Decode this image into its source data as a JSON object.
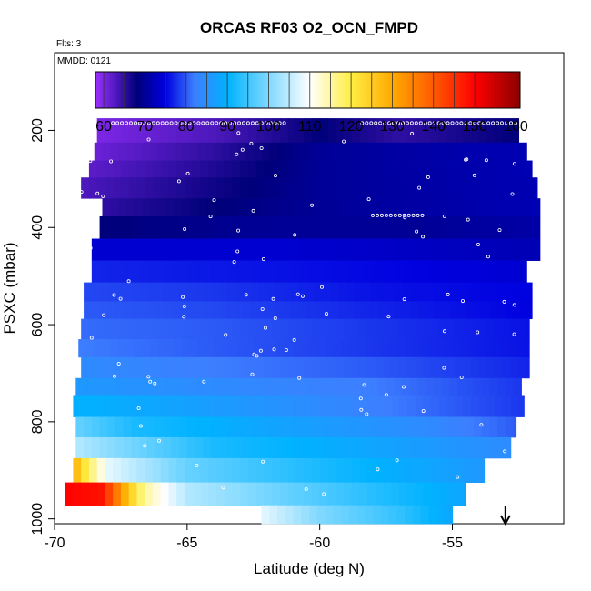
{
  "chart_data": {
    "type": "heatmap",
    "title": "ORCAS RF03 O2_OCN_FMPD",
    "flights_note": "Flts: 3",
    "date_note": "MMDD: 0121",
    "xlabel": "Latitude (deg N)",
    "ylabel": "PSXC (mbar)",
    "xlim": [
      -70,
      -50.8
    ],
    "ylim": [
      1010,
      40
    ],
    "y_reversed": true,
    "x_ticks": [
      -70,
      -65,
      -60,
      -55
    ],
    "x_tick_labels": [
      "-70",
      "-65",
      "-60",
      "-55"
    ],
    "y_ticks": [
      200,
      400,
      600,
      800,
      1000
    ],
    "y_tick_labels": [
      "200",
      "400",
      "600",
      "800",
      "1000"
    ],
    "colorbar": {
      "min": 58,
      "max": 161,
      "ticks": [
        60,
        70,
        80,
        90,
        100,
        110,
        120,
        130,
        140,
        150,
        160
      ],
      "tick_labels": [
        "60",
        "70",
        "80",
        "90",
        "100",
        "110",
        "120",
        "130",
        "140",
        "150",
        "160"
      ],
      "colors": [
        "#9b30ff",
        "#00007a",
        "#0000e0",
        "#3d7eff",
        "#00b2ff",
        "#ffffff",
        "#ffee44",
        "#ffaa00",
        "#ff5a00",
        "#ff0000",
        "#8b0000"
      ],
      "color_stops": [
        58,
        68,
        75,
        82,
        90,
        110,
        120,
        130,
        140,
        150,
        161
      ]
    },
    "grid": false,
    "legend": "colorbar-top",
    "flight_arrow_latitude": -53.0,
    "rows": [
      {
        "p_top": 175,
        "p_bot": 225,
        "x_start": -68.4,
        "x_end": -52.5,
        "value_breaks": [
          [
            -68.4,
            60
          ],
          [
            -64,
            63
          ],
          [
            -60,
            68
          ],
          [
            -57,
            65
          ],
          [
            -52.5,
            68
          ]
        ]
      },
      {
        "p_top": 225,
        "p_bot": 262,
        "x_start": -68.5,
        "x_end": -52.2,
        "value_breaks": [
          [
            -68.5,
            61
          ],
          [
            -64,
            65
          ],
          [
            -60,
            70
          ],
          [
            -52.2,
            72
          ]
        ]
      },
      {
        "p_top": 262,
        "p_bot": 297,
        "x_start": -68.7,
        "x_end": -52.0,
        "value_breaks": [
          [
            -68.7,
            62
          ],
          [
            -64,
            66
          ],
          [
            -60,
            70
          ],
          [
            -52.0,
            72
          ]
        ]
      },
      {
        "p_top": 297,
        "p_bot": 340,
        "x_start": -69.0,
        "x_end": -51.8,
        "value_breaks": [
          [
            -69.0,
            63
          ],
          [
            -64,
            67
          ],
          [
            -60,
            70
          ],
          [
            -51.8,
            72
          ]
        ]
      },
      {
        "p_top": 340,
        "p_bot": 377,
        "x_start": -68.2,
        "x_end": -51.7,
        "value_breaks": [
          [
            -68.2,
            65
          ],
          [
            -64,
            68
          ],
          [
            -60,
            70
          ],
          [
            -51.7,
            72
          ]
        ]
      },
      {
        "p_top": 377,
        "p_bot": 423,
        "x_start": -68.3,
        "x_end": -51.7,
        "value_breaks": [
          [
            -68.3,
            68
          ],
          [
            -62,
            70
          ],
          [
            -56,
            70
          ],
          [
            -51.7,
            71
          ]
        ]
      },
      {
        "p_top": 423,
        "p_bot": 468,
        "x_start": -68.6,
        "x_end": -51.7,
        "value_breaks": [
          [
            -68.6,
            74
          ],
          [
            -62,
            74
          ],
          [
            -56,
            73
          ],
          [
            -51.7,
            72
          ]
        ]
      },
      {
        "p_top": 468,
        "p_bot": 513,
        "x_start": -68.6,
        "x_end": -52.2,
        "value_breaks": [
          [
            -68.6,
            77
          ],
          [
            -62,
            76
          ],
          [
            -56,
            75
          ],
          [
            -52.2,
            74
          ]
        ]
      },
      {
        "p_top": 513,
        "p_bot": 552,
        "x_start": -68.9,
        "x_end": -52.0,
        "value_breaks": [
          [
            -68.9,
            79
          ],
          [
            -64,
            78
          ],
          [
            -58,
            76
          ],
          [
            -52.0,
            75
          ]
        ]
      },
      {
        "p_top": 552,
        "p_bot": 588,
        "x_start": -68.9,
        "x_end": -52.0,
        "value_breaks": [
          [
            -68.9,
            80
          ],
          [
            -64,
            79
          ],
          [
            -58,
            77
          ],
          [
            -52.0,
            75
          ]
        ]
      },
      {
        "p_top": 588,
        "p_bot": 630,
        "x_start": -69.0,
        "x_end": -52.1,
        "value_breaks": [
          [
            -69.0,
            81
          ],
          [
            -64,
            80
          ],
          [
            -58,
            78
          ],
          [
            -52.1,
            76
          ]
        ]
      },
      {
        "p_top": 630,
        "p_bot": 667,
        "x_start": -69.1,
        "x_end": -52.1,
        "value_breaks": [
          [
            -69.1,
            82
          ],
          [
            -64,
            80
          ],
          [
            -58,
            78
          ],
          [
            -52.1,
            76
          ]
        ]
      },
      {
        "p_top": 667,
        "p_bot": 710,
        "x_start": -69.0,
        "x_end": -52.1,
        "value_breaks": [
          [
            -69.0,
            84
          ],
          [
            -64,
            82
          ],
          [
            -58,
            80
          ],
          [
            -52.1,
            77
          ]
        ]
      },
      {
        "p_top": 710,
        "p_bot": 745,
        "x_start": -69.2,
        "x_end": -52.4,
        "value_breaks": [
          [
            -69.2,
            86
          ],
          [
            -64,
            84
          ],
          [
            -58,
            82
          ],
          [
            -52.4,
            78
          ]
        ]
      },
      {
        "p_top": 745,
        "p_bot": 790,
        "x_start": -69.3,
        "x_end": -52.3,
        "value_breaks": [
          [
            -69.3,
            90
          ],
          [
            -66,
            88
          ],
          [
            -60,
            84
          ],
          [
            -52.3,
            78
          ]
        ]
      },
      {
        "p_top": 790,
        "p_bot": 832,
        "x_start": -69.2,
        "x_end": -52.6,
        "value_breaks": [
          [
            -69.2,
            98
          ],
          [
            -67,
            92
          ],
          [
            -62,
            88
          ],
          [
            -56,
            84
          ],
          [
            -52.6,
            80
          ]
        ]
      },
      {
        "p_top": 832,
        "p_bot": 875,
        "x_start": -69.2,
        "x_end": -52.8,
        "value_breaks": [
          [
            -69.2,
            104
          ],
          [
            -67.5,
            100
          ],
          [
            -64,
            92
          ],
          [
            -58,
            88
          ],
          [
            -52.8,
            84
          ]
        ]
      },
      {
        "p_top": 875,
        "p_bot": 925,
        "x_start": -69.3,
        "x_end": -53.8,
        "value_breaks": [
          [
            -69.3,
            130
          ],
          [
            -68.8,
            120
          ],
          [
            -68.0,
            108
          ],
          [
            -65,
            98
          ],
          [
            -60,
            92
          ],
          [
            -53.8,
            86
          ]
        ]
      },
      {
        "p_top": 925,
        "p_bot": 972,
        "x_start": -69.6,
        "x_end": -54.5,
        "value_breaks": [
          [
            -69.6,
            150
          ],
          [
            -68.2,
            148
          ],
          [
            -67.3,
            128
          ],
          [
            -66.6,
            115
          ],
          [
            -65,
            104
          ],
          [
            -60,
            96
          ],
          [
            -54.5,
            88
          ]
        ]
      },
      {
        "p_top": 972,
        "p_bot": 1010,
        "x_start": -62.2,
        "x_end": -55.0,
        "value_breaks": [
          [
            -62.2,
            108
          ],
          [
            -60,
            100
          ],
          [
            -57,
            94
          ],
          [
            -55.0,
            88
          ]
        ]
      }
    ]
  }
}
